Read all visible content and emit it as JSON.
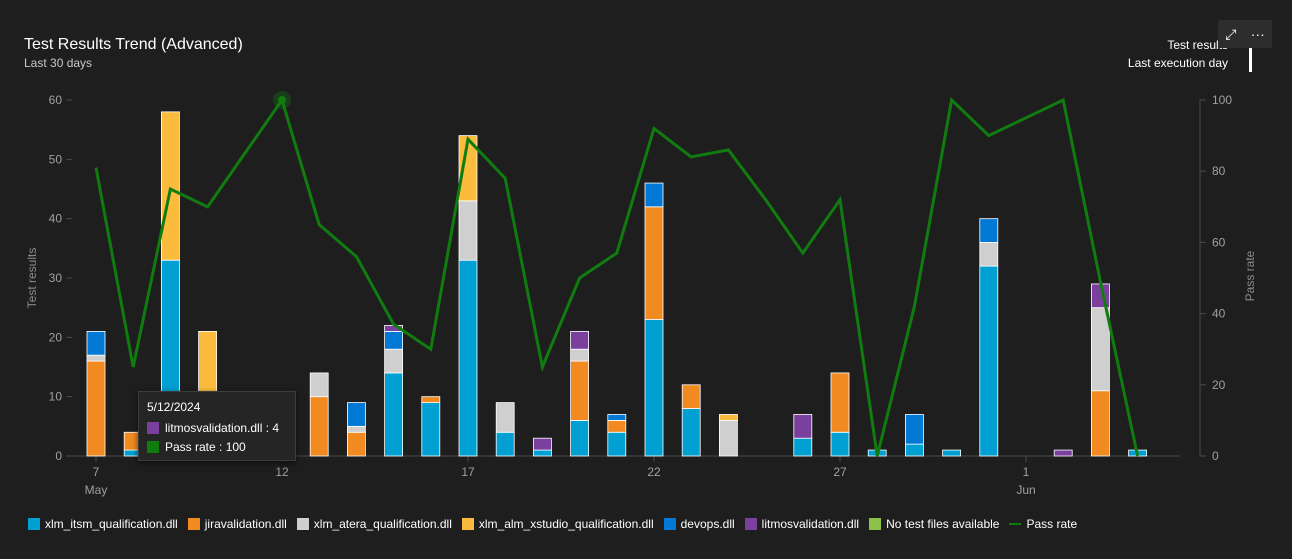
{
  "header": {
    "title": "Test Results Trend (Advanced)",
    "subtitle": "Last 30 days",
    "mode_label": "Test results",
    "mode_sub_label": "Last execution day"
  },
  "toolbar": {
    "expand_icon": "expand-icon",
    "more_label": "···"
  },
  "tooltip": {
    "date": "5/12/2024",
    "rows": [
      {
        "label": "litmosvalidation.dll : 4",
        "color": "#7b3f9e"
      },
      {
        "label": "Pass rate : 100",
        "color": "#107c10"
      }
    ]
  },
  "colors": {
    "xlm_itsm_qualification.dll": "#00a0d2",
    "jiravalidation.dll": "#f28a22",
    "xlm_atera_qualification.dll": "#cfcfcf",
    "xlm_alm_xstudio_qualification.dll": "#fbbc3d",
    "devops.dll": "#0078d4",
    "litmosvalidation.dll": "#7b3f9e",
    "No test files available": "#8bc34a",
    "Pass rate": "#107c10"
  },
  "chart_data": {
    "type": "bar",
    "stacked": true,
    "x": [
      "5/7",
      "5/8",
      "5/9",
      "5/10",
      "5/11",
      "5/12",
      "5/13",
      "5/14",
      "5/15",
      "5/16",
      "5/17",
      "5/18",
      "5/19",
      "5/20",
      "5/21",
      "5/22",
      "5/23",
      "5/24",
      "5/25",
      "5/26",
      "5/27",
      "5/28",
      "5/29",
      "5/30",
      "5/31",
      "6/1",
      "6/2",
      "6/3",
      "6/4"
    ],
    "x_tick_labels": [
      {
        "index": 0,
        "label": "7",
        "sub": "May"
      },
      {
        "index": 5,
        "label": "12",
        "sub": ""
      },
      {
        "index": 10,
        "label": "17",
        "sub": ""
      },
      {
        "index": 15,
        "label": "22",
        "sub": ""
      },
      {
        "index": 20,
        "label": "27",
        "sub": ""
      },
      {
        "index": 25,
        "label": "1",
        "sub": "Jun"
      }
    ],
    "ylabel": "Test results",
    "ylim": [
      0,
      60
    ],
    "yticks": [
      0,
      10,
      20,
      30,
      40,
      50,
      60
    ],
    "y2label": "Pass rate",
    "y2lim": [
      0,
      100
    ],
    "y2ticks": [
      0,
      20,
      40,
      60,
      80,
      100
    ],
    "series": [
      {
        "name": "xlm_itsm_qualification.dll",
        "values": [
          0,
          1,
          33,
          0,
          0,
          0,
          0,
          0,
          14,
          9,
          33,
          4,
          1,
          6,
          4,
          23,
          8,
          0,
          0,
          3,
          4,
          1,
          2,
          1,
          32,
          0,
          0,
          0,
          1
        ]
      },
      {
        "name": "jiravalidation.dll",
        "values": [
          16,
          3,
          0,
          0,
          0,
          0,
          10,
          4,
          0,
          1,
          0,
          0,
          0,
          10,
          2,
          19,
          4,
          0,
          0,
          0,
          10,
          0,
          0,
          0,
          0,
          0,
          0,
          11,
          0
        ]
      },
      {
        "name": "xlm_atera_qualification.dll",
        "values": [
          1,
          0,
          0,
          0,
          0,
          0,
          4,
          1,
          4,
          0,
          10,
          5,
          0,
          2,
          0,
          0,
          0,
          6,
          0,
          0,
          0,
          0,
          0,
          0,
          4,
          0,
          0,
          14,
          0
        ]
      },
      {
        "name": "xlm_alm_xstudio_qualification.dll",
        "values": [
          0,
          0,
          25,
          21,
          0,
          0,
          0,
          0,
          0,
          0,
          11,
          0,
          0,
          0,
          0,
          0,
          0,
          1,
          0,
          0,
          0,
          0,
          0,
          0,
          0,
          0,
          0,
          0,
          0
        ]
      },
      {
        "name": "devops.dll",
        "values": [
          4,
          0,
          0,
          0,
          0,
          0,
          0,
          4,
          3,
          0,
          0,
          0,
          0,
          0,
          1,
          4,
          0,
          0,
          0,
          0,
          0,
          0,
          5,
          0,
          4,
          0,
          0,
          0,
          0
        ]
      },
      {
        "name": "litmosvalidation.dll",
        "values": [
          0,
          0,
          0,
          0,
          0,
          4,
          0,
          0,
          1,
          0,
          0,
          0,
          2,
          3,
          0,
          0,
          0,
          0,
          0,
          4,
          0,
          0,
          0,
          0,
          0,
          0,
          1,
          4,
          0
        ]
      },
      {
        "name": "No test files available",
        "values": [
          0,
          0,
          0,
          0,
          0,
          0,
          0,
          0,
          0,
          0,
          0,
          0,
          0,
          0,
          0,
          0,
          0,
          0,
          0,
          0,
          0,
          0,
          0,
          0,
          0,
          0,
          0,
          0,
          0
        ]
      }
    ],
    "line_series": {
      "name": "Pass rate",
      "axis": "right",
      "values": [
        81,
        25,
        75,
        70,
        85,
        100,
        65,
        56,
        37,
        30,
        89,
        78,
        25,
        50,
        57,
        92,
        84,
        86,
        72,
        57,
        72,
        0,
        42,
        100,
        90,
        95,
        100,
        49,
        0
      ]
    },
    "legend_position": "bottom-left"
  },
  "legend": [
    {
      "label": "xlm_itsm_qualification.dll",
      "color": "#00a0d2",
      "kind": "box"
    },
    {
      "label": "jiravalidation.dll",
      "color": "#f28a22",
      "kind": "box"
    },
    {
      "label": "xlm_atera_qualification.dll",
      "color": "#cfcfcf",
      "kind": "box"
    },
    {
      "label": "xlm_alm_xstudio_qualification.dll",
      "color": "#fbbc3d",
      "kind": "box"
    },
    {
      "label": "devops.dll",
      "color": "#0078d4",
      "kind": "box"
    },
    {
      "label": "litmosvalidation.dll",
      "color": "#7b3f9e",
      "kind": "box"
    },
    {
      "label": "No test files available",
      "color": "#8bc34a",
      "kind": "box"
    },
    {
      "label": "Pass rate",
      "color": "#107c10",
      "kind": "line"
    }
  ]
}
